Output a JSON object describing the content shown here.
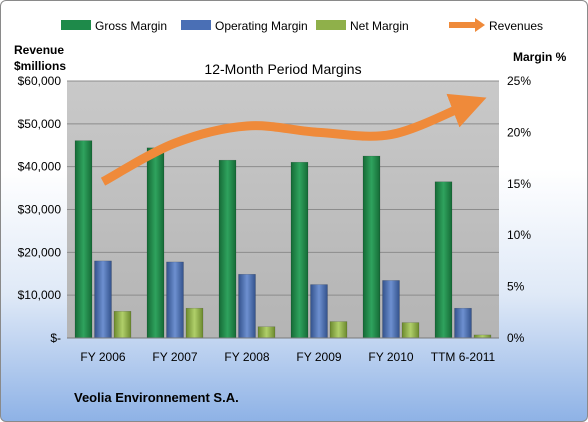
{
  "chart_data": {
    "type": "bar",
    "title": "12-Month Period Margins",
    "categories": [
      "FY 2006",
      "FY 2007",
      "FY 2008",
      "FY 2009",
      "FY 2010",
      "TTM 6-2011"
    ],
    "left_axis": {
      "label_line1": "Revenue",
      "label_line2": "$millions",
      "ylim": [
        0,
        60000
      ],
      "ticks": [
        "$-",
        "$10,000",
        "$20,000",
        "$30,000",
        "$40,000",
        "$50,000",
        "$60,000"
      ]
    },
    "right_axis": {
      "label": "Margin %",
      "ylim": [
        0,
        25
      ],
      "ticks": [
        "0%",
        "5%",
        "10%",
        "15%",
        "20%",
        "25%"
      ]
    },
    "series": [
      {
        "name": "Gross Margin",
        "axis": "right",
        "color": "#1e8a4a",
        "values": [
          19.2,
          18.5,
          17.3,
          17.1,
          17.7,
          15.2
        ]
      },
      {
        "name": "Operating Margin",
        "axis": "right",
        "color": "#4a6fb5",
        "values": [
          7.5,
          7.4,
          6.2,
          5.2,
          5.6,
          2.9
        ]
      },
      {
        "name": "Net Margin",
        "axis": "right",
        "color": "#8fb04a",
        "values": [
          2.6,
          2.9,
          1.1,
          1.6,
          1.5,
          0.3
        ]
      },
      {
        "name": "Revenues",
        "axis": "left",
        "color": "#ef8a3a",
        "type": "line",
        "values": [
          36500,
          45500,
          49500,
          48000,
          47500,
          54000
        ]
      }
    ],
    "grid": true,
    "legend_position": "top"
  },
  "footer": {
    "company": "Veolia Environnement S.A."
  }
}
